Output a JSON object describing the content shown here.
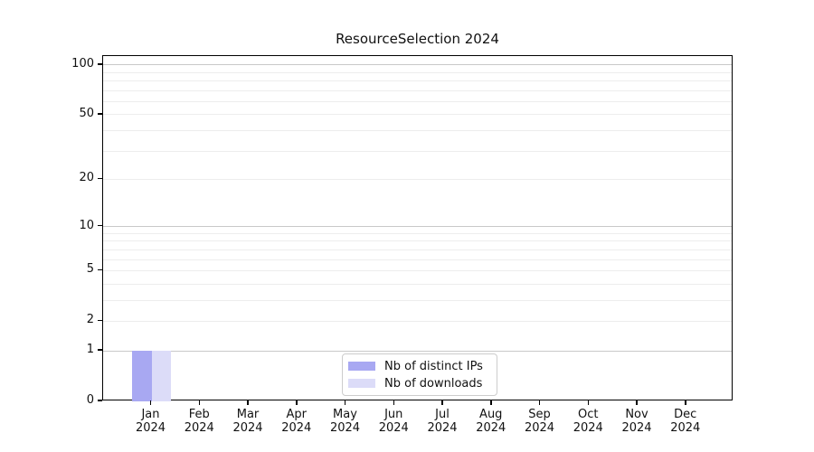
{
  "chart_data": {
    "type": "bar",
    "title": "ResourceSelection 2024",
    "scale": "log1p",
    "categories": [
      "Jan",
      "Feb",
      "Mar",
      "Apr",
      "May",
      "Jun",
      "Jul",
      "Aug",
      "Sep",
      "Oct",
      "Nov",
      "Dec"
    ],
    "x_year": "2024",
    "series": [
      {
        "name": "Nb of distinct IPs",
        "color": "#a8a8f2",
        "values": [
          1,
          0,
          0,
          0,
          0,
          0,
          0,
          0,
          0,
          0,
          0,
          0
        ]
      },
      {
        "name": "Nb of downloads",
        "color": "#dcdcf8",
        "values": [
          1,
          0,
          0,
          0,
          0,
          0,
          0,
          0,
          0,
          0,
          0,
          0
        ]
      }
    ],
    "y_ticks": [
      0,
      1,
      2,
      5,
      10,
      20,
      50,
      100
    ],
    "grid_major": [
      1,
      10,
      100
    ],
    "grid_minor": [
      2,
      3,
      4,
      5,
      6,
      7,
      8,
      9,
      20,
      30,
      40,
      50,
      60,
      70,
      80,
      90
    ],
    "ylim": [
      0,
      113
    ],
    "xlabel": "",
    "ylabel": "",
    "grid": "horizontal",
    "legend_position": "lower center"
  },
  "colors": {
    "grid_major": "#c9c9c9",
    "grid_minor": "#ededed",
    "spine": "#000000",
    "legend_border": "#cccccc",
    "background": "#ffffff"
  }
}
